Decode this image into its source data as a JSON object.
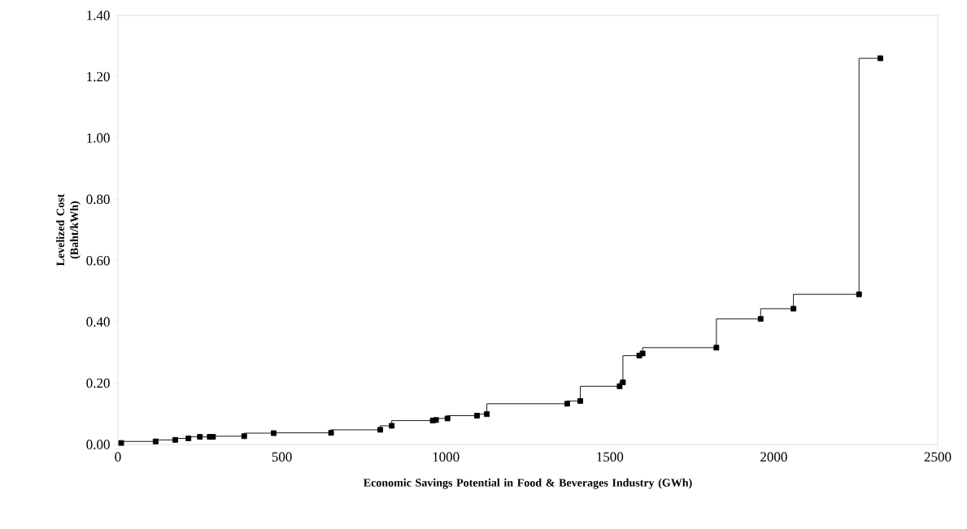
{
  "chart_data": {
    "type": "step",
    "xlabel": "Economic Savings Potential in Food & Beverages Industry (GWh)",
    "ylabel": "Levelized Cost (Baht/kWh)",
    "x": [
      10,
      115,
      175,
      215,
      250,
      280,
      290,
      385,
      475,
      650,
      800,
      835,
      960,
      970,
      1005,
      1095,
      1125,
      1370,
      1410,
      1530,
      1540,
      1590,
      1600,
      1825,
      1960,
      2060,
      2260,
      2325
    ],
    "series": [
      {
        "color": "#000000",
        "values": [
          0.005,
          0.01,
          0.015,
          0.02,
          0.025,
          0.025,
          0.025,
          0.027,
          0.037,
          0.038,
          0.048,
          0.061,
          0.078,
          0.08,
          0.085,
          0.094,
          0.099,
          0.133,
          0.142,
          0.19,
          0.203,
          0.29,
          0.297,
          0.316,
          0.41,
          0.443,
          0.49,
          1.26
        ]
      }
    ],
    "xlim": [
      0,
      2500
    ],
    "xticks": [
      0,
      500,
      1000,
      1500,
      2000,
      2500
    ],
    "ylim": [
      0,
      1.4
    ],
    "yticks": [
      {
        "value": 0,
        "label": "0.00"
      },
      {
        "value": 0.2,
        "label": "0.20"
      },
      {
        "value": 0.4,
        "label": "0.40"
      },
      {
        "value": 0.6,
        "label": "0.60"
      },
      {
        "value": 0.8,
        "label": "0.80"
      },
      {
        "value": 1.0,
        "label": "1.00"
      },
      {
        "value": 1.2,
        "label": "1.20"
      },
      {
        "value": 1.4,
        "label": "1.40"
      }
    ],
    "marker": "square",
    "grid": false
  }
}
